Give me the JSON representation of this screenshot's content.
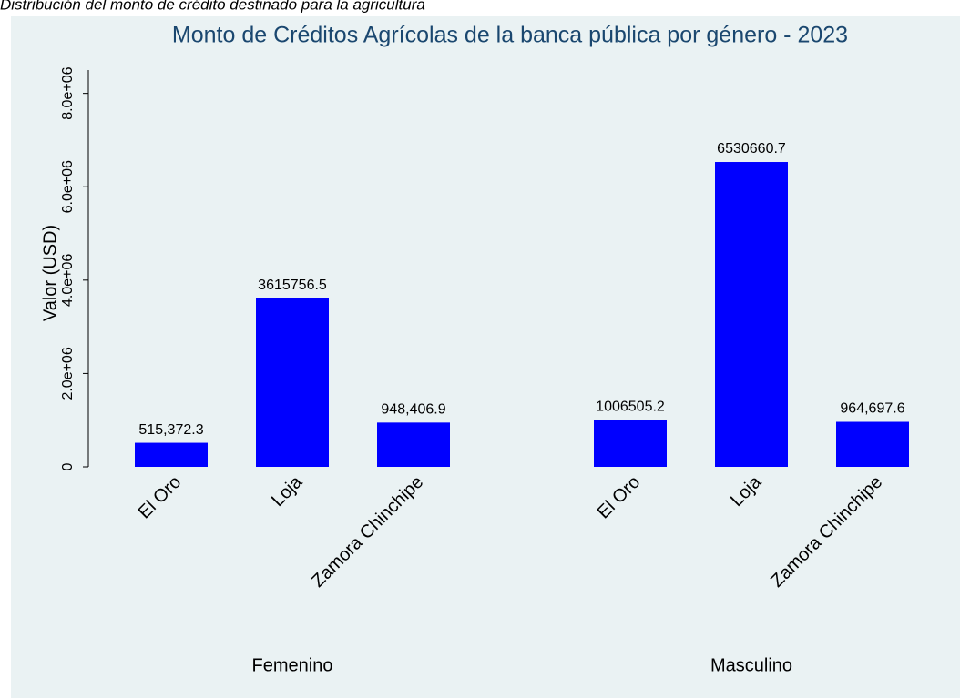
{
  "chart_data": {
    "type": "bar",
    "subtitle": "Distribución del monto de crédito destinado para la agricultura",
    "title": "Monto de Créditos Agrícolas de la banca pública por género - 2023",
    "y_label": "Valor (USD)",
    "categories": [
      "El Oro",
      "Loja",
      "Zamora Chinchipe"
    ],
    "series": [
      {
        "name": "Femenino",
        "color": "#0000ff",
        "values": [
          515372.3,
          3615756.5,
          948406.9
        ],
        "value_labels": [
          "515,372.3",
          "3615756.5",
          "948,406.9"
        ]
      },
      {
        "name": "Masculino",
        "color": "#0000ff",
        "values": [
          1006505.2,
          6530660.7,
          964697.6
        ],
        "value_labels": [
          "1006505.2",
          "6530660.7",
          "964,697.6"
        ]
      }
    ],
    "ylim": [
      0,
      8500000
    ],
    "yticks": [
      0,
      {
        "value": 2000000,
        "label": "2.0e+06"
      },
      {
        "value": 4000000,
        "label": "4.0e+06"
      },
      {
        "value": 6000000,
        "label": "6.0e+06"
      },
      {
        "value": 8000000,
        "label": "8.0e+06"
      }
    ],
    "grid": false
  }
}
